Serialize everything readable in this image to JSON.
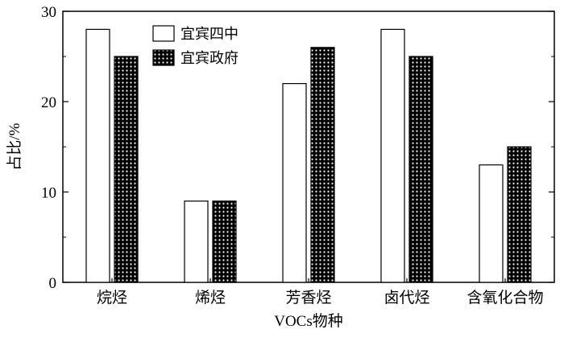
{
  "chart_data": {
    "type": "bar",
    "categories": [
      "烷烃",
      "烯烃",
      "芳香烃",
      "卤代烃",
      "含氧化合物"
    ],
    "series": [
      {
        "name": "宜宾四中",
        "values": [
          28,
          9,
          22,
          28,
          13
        ],
        "fill": "#ffffff"
      },
      {
        "name": "宜宾政府",
        "values": [
          25,
          9,
          26,
          25,
          15
        ],
        "fill": "dotted-black"
      }
    ],
    "title": "",
    "xlabel": "VOCs物种",
    "ylabel": "占比/%",
    "ylim": [
      0,
      30
    ],
    "yticks": [
      0,
      10,
      20,
      30
    ],
    "grid": false,
    "legend_position": "top-left",
    "colors": {
      "axis": "#000000",
      "bar_outline": "#000000",
      "dot_pattern_bg": "#000000",
      "dot_pattern_dot": "#ffffff"
    }
  }
}
